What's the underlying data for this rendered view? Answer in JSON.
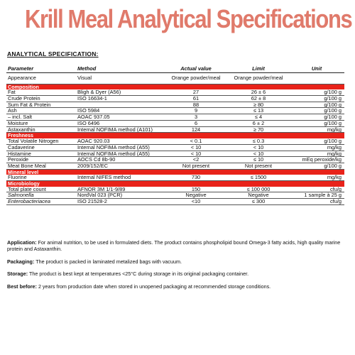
{
  "title": "Krill Meal Analytical Specifications",
  "spec_heading": "ANALYTICAL SPECIFICATION:",
  "columns": {
    "parameter": "Parameter",
    "method": "Method",
    "actual": "Actual value",
    "limit": "Limit",
    "unit": "Unit"
  },
  "appearance": {
    "parameter": "Appearance",
    "method": "Visual",
    "actual": "Orange powder/meal",
    "limit": "Orange powder/meal",
    "unit": ""
  },
  "sections": {
    "composition": {
      "title": "Composition",
      "rows": [
        {
          "parameter": "Fat",
          "method": "Bligh & Dyer (A56)",
          "actual": "27",
          "limit": "26 ± 6",
          "unit": "g/100 g"
        },
        {
          "parameter": "Crude Protein",
          "method": "ISO 16634-1",
          "actual": "61",
          "limit": "62 ± 8",
          "unit": "g/100 g"
        },
        {
          "parameter": "Sum Fat & Protein",
          "method": "",
          "actual": "88",
          "limit": "≥ 80",
          "unit": "g/100 g"
        },
        {
          "parameter": "Ash",
          "method": "ISO 5984",
          "actual": "9",
          "limit": "≤ 13",
          "unit": "g/100 g"
        },
        {
          "parameter": "– incl. Salt",
          "method": "AOAC 937.05",
          "actual": "3",
          "limit": "≤ 4",
          "unit": "g/100 g"
        },
        {
          "parameter": "Moisture",
          "method": "ISO 6496",
          "actual": "6",
          "limit": "6 ± 2",
          "unit": "g/100 g"
        },
        {
          "parameter": "Astaxanthin",
          "method": "Internal NOFIMA method (A101)",
          "actual": "124",
          "limit": "≥ 70",
          "unit": "mg/kg"
        }
      ]
    },
    "freshness": {
      "title": "Freshness",
      "rows": [
        {
          "parameter": "Total Volatile Nitrogen",
          "method": "AOAC 920.03",
          "actual": "< 0.1",
          "limit": "≤ 0.3",
          "unit": "g/100 g"
        },
        {
          "parameter": "Cadaverine",
          "method": "Internal NOFIMA method (A55)",
          "actual": "< 10",
          "limit": "< 10",
          "unit": "mg/kg"
        },
        {
          "parameter": "Histamine",
          "method": "Internal NOFIMA method (A55)",
          "actual": "< 10",
          "limit": "< 10",
          "unit": "mg/kg"
        },
        {
          "parameter": "Peroxide",
          "method": "AOCS Cd 8b-90",
          "actual": "<2",
          "limit": "≤ 10",
          "unit": "mEq peroxide/kg"
        },
        {
          "parameter": "Meat Bone Meal",
          "method": "2009/152/EC",
          "actual": "Not present",
          "limit": "Not present",
          "unit": "g/100 g"
        }
      ]
    },
    "mineral": {
      "title": "Mineral level",
      "rows": [
        {
          "parameter": "Fluorine",
          "method": "Internal NIFES method",
          "actual": "730",
          "limit": "≤ 1500",
          "unit": "mg/kg"
        }
      ]
    },
    "microbiology": {
      "title": "Microbiology",
      "rows": [
        {
          "parameter": "Total plate count",
          "method": "AFNOR 3M 1/1-9/89",
          "actual": "150",
          "limit": "≤ 100 000",
          "unit": "cfu/g"
        },
        {
          "parameter": "Salmonella",
          "method": "NordVal 023 (PCR)",
          "actual": "Negative",
          "limit": "Negative",
          "unit": "1 sample à 25 g"
        },
        {
          "parameter": "Enterobacteriacea",
          "method": "ISO 21528-2",
          "actual": "<10",
          "limit": "≤ 300",
          "unit": "cfu/g"
        }
      ]
    }
  },
  "notes": {
    "application_label": "Application:",
    "application_text": "For animal nutrition, to be used in formulated diets. The product contains phospholipid bound Omega-3 fatty acids, high quality marine protein and Astaxanthin.",
    "packaging_label": "Packaging:",
    "packaging_text": "The product is packed in laminated metalized bags with vacuum.",
    "storage_label": "Storage:",
    "storage_text": "The product is best kept at temperatures <25°C during storage in its original packaging container.",
    "best_before_label": "Best before:",
    "best_before_text": "2 years from production date when stored in unopened packaging at recommended storage conditions."
  }
}
